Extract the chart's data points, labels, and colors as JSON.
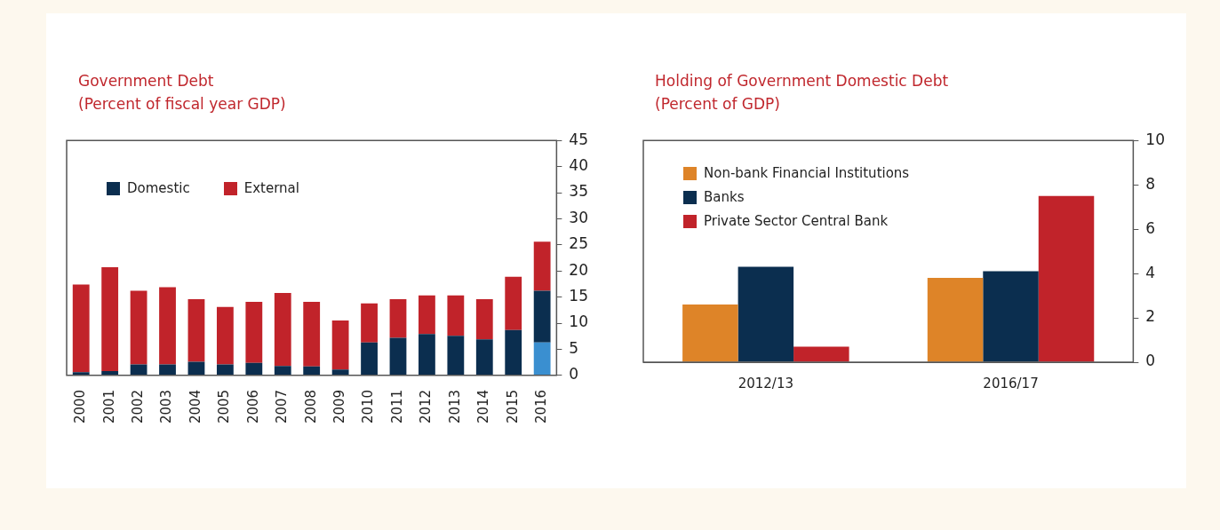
{
  "chart_data": [
    {
      "type": "bar",
      "title": "Government Debt",
      "subtitle": "(Percent of fiscal year GDP)",
      "stacked": true,
      "legend": "top left",
      "grid": false,
      "categories": [
        "2000",
        "2001",
        "2002",
        "2003",
        "2004",
        "2005",
        "2006",
        "2007",
        "2008",
        "2009",
        "2010",
        "2011",
        "2012",
        "2013",
        "2014",
        "2015",
        "2016"
      ],
      "series": [
        {
          "color": "#3a8fd0",
          "values": [
            null,
            null,
            null,
            null,
            null,
            null,
            null,
            null,
            null,
            null,
            null,
            null,
            null,
            null,
            null,
            null,
            6.3
          ]
        },
        {
          "name": "Domestic",
          "color": "#0b2e4f",
          "values": [
            0.6,
            0.8,
            2.1,
            2.1,
            2.6,
            2.1,
            2.4,
            1.8,
            1.7,
            1.1,
            6.3,
            7.2,
            7.9,
            7.6,
            6.9,
            8.7,
            9.9
          ]
        },
        {
          "name": "External",
          "color": "#c1232a",
          "values": [
            16.8,
            19.9,
            14.1,
            14.8,
            12.0,
            11.0,
            11.7,
            14.0,
            12.4,
            9.4,
            7.5,
            7.4,
            7.4,
            7.7,
            7.7,
            10.2,
            9.4
          ]
        }
      ],
      "ylim": [
        0,
        45
      ],
      "yticks": [
        0,
        5,
        10,
        15,
        20,
        25,
        30,
        35,
        40,
        45
      ]
    },
    {
      "type": "bar",
      "title": "Holding of Government Domestic Debt",
      "subtitle": "(Percent of GDP)",
      "legend": "top left",
      "grid": false,
      "categories": [
        "2012/13",
        "2016/17"
      ],
      "series": [
        {
          "name": "Non-bank Financial Institutions",
          "color": "#de8428",
          "values": [
            2.6,
            3.8
          ]
        },
        {
          "name": "Banks",
          "color": "#0b2e4f",
          "values": [
            4.3,
            4.1
          ]
        },
        {
          "name": "Private Sector Central Bank",
          "color": "#c1232a",
          "values": [
            0.7,
            7.5
          ]
        }
      ],
      "ylim": [
        0,
        10
      ],
      "yticks": [
        0,
        2,
        4,
        6,
        8,
        10
      ]
    }
  ]
}
